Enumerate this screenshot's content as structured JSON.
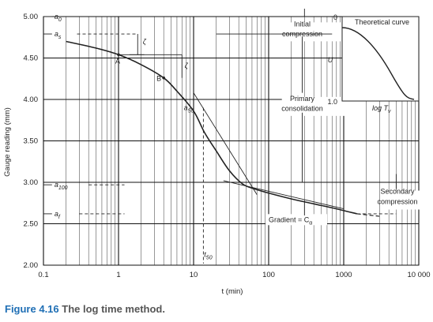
{
  "chart_data": {
    "type": "line",
    "xscale": "log",
    "xlim": [
      0.1,
      10000
    ],
    "ylim": [
      2.0,
      5.0
    ],
    "xlabel": "t (min)",
    "ylabel": "Gauge reading (mm)",
    "x_ticks": [
      "0.1",
      "1",
      "10",
      "100",
      "1000",
      "10 000"
    ],
    "y_ticks": [
      "2.00",
      "2.50",
      "3.00",
      "3.50",
      "4.00",
      "4.50",
      "5.00"
    ],
    "grid": true,
    "series": [
      {
        "name": "",
        "x": [
          0.2,
          0.5,
          1,
          2,
          4,
          6,
          10,
          14,
          20,
          30,
          45,
          65,
          100,
          200,
          400,
          800,
          1500
        ],
        "y": [
          4.7,
          4.62,
          4.54,
          4.42,
          4.26,
          4.1,
          3.86,
          3.6,
          3.38,
          3.14,
          2.98,
          2.92,
          2.87,
          2.8,
          2.74,
          2.68,
          2.62
        ]
      }
    ],
    "annotations": {
      "a0": "a",
      "a0_sub": "0",
      "as": "a",
      "as_sub": "s",
      "a50": "a",
      "a50_sub": "50",
      "a100": "a",
      "a100_sub": "100",
      "af": "a",
      "af_sub": "f",
      "t50": "t",
      "t50_sub": "50",
      "point_a": "A",
      "point_b": "B",
      "zeta": "ζ",
      "initial_compression": [
        "Initial",
        "compression"
      ],
      "primary_consolidation": [
        "Primary",
        "consolidation"
      ],
      "secondary_compression": [
        "Secondary",
        "compression"
      ],
      "gradient": "Gradient = C",
      "gradient_sub": "α"
    },
    "inset": {
      "title": "Theoretical curve",
      "ylabel": "U",
      "y_ticks": [
        "0",
        "1.0"
      ],
      "xlabel": "log T",
      "xlabel_sub": "v"
    }
  },
  "caption": {
    "number": "Figure 4.16",
    "text": "The log time method."
  }
}
